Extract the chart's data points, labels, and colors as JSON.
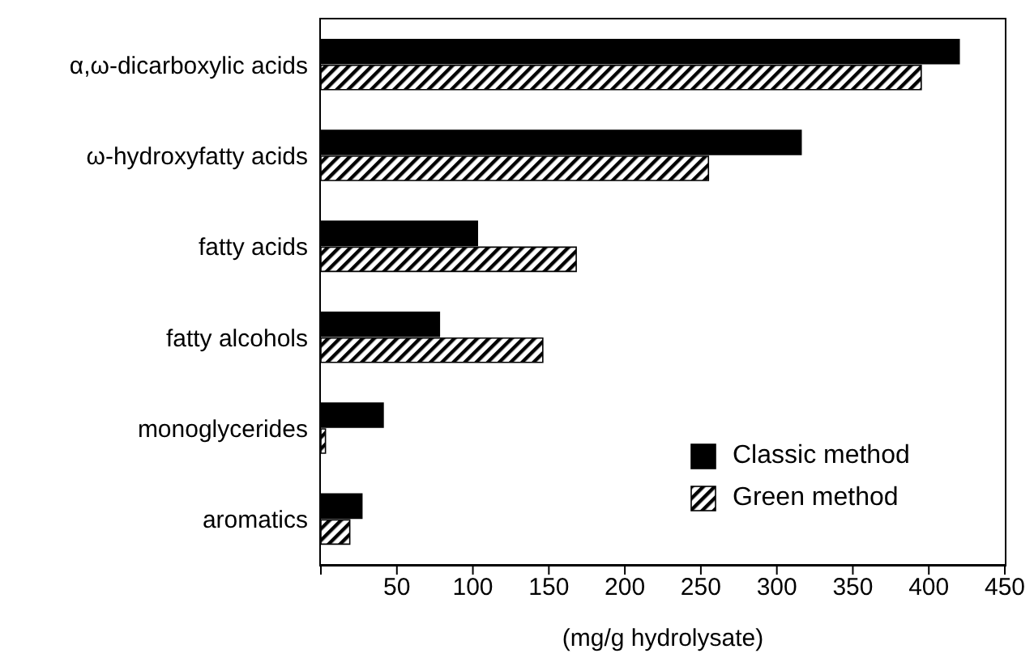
{
  "chart_data": {
    "type": "bar",
    "orientation": "horizontal",
    "xlabel": "(mg/g hydrolysate)",
    "categories": [
      "α,ω-dicarboxylic acids",
      "ω-hydroxyfatty acids",
      "fatty acids",
      "fatty alcohols",
      "monoglycerides",
      "aromatics"
    ],
    "series": [
      {
        "name": "Classic method",
        "color": "#000000",
        "values": [
          420,
          316,
          103,
          78,
          41,
          27
        ]
      },
      {
        "name": "Green method",
        "color": "#000000",
        "values": [
          395,
          255,
          168,
          146,
          3,
          19
        ]
      }
    ],
    "xlim": [
      0,
      450
    ],
    "xticks": [
      {
        "value": 0,
        "label": null
      },
      50,
      100,
      150,
      200,
      250,
      300,
      350,
      400,
      450
    ],
    "legend": "bottom right",
    "grid": false
  }
}
